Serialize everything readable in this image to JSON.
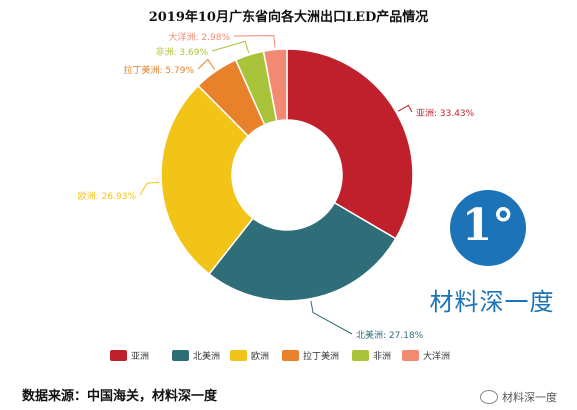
{
  "title": "2019年10月广东省向各大洲出口LED产品情况",
  "source": "数据来源：中国海关，材料深一度",
  "watermark": {
    "logo_glyph": "1°",
    "logo_text": "材料深一度",
    "bottom_text": "材料深一度",
    "logo_color": "#1c73b8"
  },
  "chart_data": {
    "type": "pie",
    "variant": "donut",
    "title": "2019年10月广东省向各大洲出口LED产品情况",
    "start": "12 o'clock",
    "direction": "clockwise",
    "legend_position": "bottom",
    "slices": [
      {
        "name": "亚洲",
        "value": 33.43,
        "label": "亚洲: 33.43%",
        "color": "#c0202c"
      },
      {
        "name": "北美洲",
        "value": 27.18,
        "label": "北美洲: 27.18%",
        "color": "#2f6e78"
      },
      {
        "name": "欧洲",
        "value": 26.93,
        "label": "欧洲: 26.93%",
        "color": "#f3c418"
      },
      {
        "name": "拉丁美洲",
        "value": 5.79,
        "label": "拉丁美洲: 5.79%",
        "color": "#e8812a"
      },
      {
        "name": "非洲",
        "value": 3.69,
        "label": "非洲: 3.69%",
        "color": "#a9c43a"
      },
      {
        "name": "大洋洲",
        "value": 2.98,
        "label": "大洋洲: 2.98%",
        "color": "#f28a73"
      }
    ]
  }
}
